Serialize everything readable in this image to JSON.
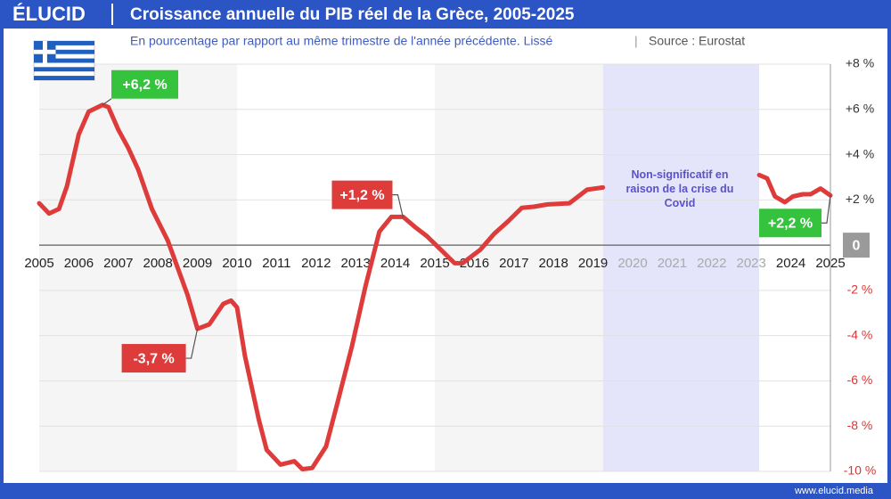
{
  "logo": "ÉLUCID",
  "footer": "www.elucid.media",
  "chart_data": {
    "type": "line",
    "title": "Croissance annuelle du PIB réel de la Grèce, 2005-2025",
    "subtitle": "En pourcentage par rapport au même trimestre de l'année précédente. Lissé",
    "source": "Source : Eurostat",
    "xlim": [
      2005,
      2025
    ],
    "xticks": [
      2005,
      2006,
      2007,
      2008,
      2009,
      2010,
      2011,
      2012,
      2013,
      2014,
      2015,
      2016,
      2017,
      2018,
      2019,
      2020,
      2021,
      2022,
      2023,
      2024,
      2025
    ],
    "ylim": [
      -10,
      8
    ],
    "yticks": [
      {
        "value": 8,
        "label": "+8 %"
      },
      {
        "value": 6,
        "label": "+6 %"
      },
      {
        "value": 4,
        "label": "+4 %"
      },
      {
        "value": 2,
        "label": "+2 %"
      },
      0,
      {
        "value": -2,
        "label": "-2 %"
      },
      {
        "value": -4,
        "label": "-4 %"
      },
      {
        "value": -6,
        "label": "-6 %"
      },
      {
        "value": -8,
        "label": "-8 %"
      },
      {
        "value": -10,
        "label": "-10 %"
      }
    ],
    "grid": true,
    "shaded_ranges": [
      {
        "from": 2005,
        "to": 2010,
        "color": "#f5f5f5"
      },
      {
        "from": 2015,
        "to": 2019.25,
        "color": "#f5f5f5"
      }
    ],
    "covid_range": {
      "from": 2019.25,
      "to": 2023.2,
      "color": "#e4e4fb",
      "text": "Non-significatif en raison de la crise du Covid"
    },
    "series": [
      {
        "name": "PIB réel",
        "color": "#de3b3b",
        "x": [
          2005.0,
          2005.25,
          2005.5,
          2005.7,
          2006.0,
          2006.25,
          2006.6,
          2006.75,
          2007.0,
          2007.25,
          2007.5,
          2007.85,
          2008.25,
          2008.5,
          2008.75,
          2009.0,
          2009.3,
          2009.65,
          2009.85,
          2010.0,
          2010.2,
          2010.55,
          2010.75,
          2011.1,
          2011.45,
          2011.65,
          2011.9,
          2012.25,
          2012.55,
          2012.9,
          2013.25,
          2013.6,
          2013.9,
          2014.2,
          2014.5,
          2014.8,
          2015.15,
          2015.5,
          2015.7,
          2016.15,
          2016.5,
          2016.85,
          2017.2,
          2017.5,
          2017.85,
          2018.4,
          2018.85,
          2019.25,
          2021.0,
          2023.2,
          2023.4,
          2023.6,
          2023.85,
          2024.05,
          2024.3,
          2024.5,
          2024.75,
          2025.0
        ],
        "values": [
          1.85,
          1.4,
          1.6,
          2.6,
          4.9,
          5.9,
          6.2,
          6.1,
          5.1,
          4.3,
          3.35,
          1.6,
          0.2,
          -1.0,
          -2.2,
          -3.7,
          -3.5,
          -2.6,
          -2.45,
          -2.75,
          -4.9,
          -7.7,
          -9.05,
          -9.7,
          -9.55,
          -9.9,
          -9.85,
          -8.9,
          -6.9,
          -4.5,
          -1.8,
          0.6,
          1.25,
          1.25,
          0.8,
          0.4,
          -0.2,
          -0.8,
          -0.8,
          -0.2,
          0.5,
          1.05,
          1.65,
          1.7,
          1.8,
          1.85,
          2.45,
          2.55,
          null,
          3.1,
          2.95,
          2.15,
          1.9,
          2.15,
          2.25,
          2.25,
          2.5,
          2.2
        ]
      }
    ],
    "annotations": [
      {
        "text": "+6,2 %",
        "x": 2006.6,
        "y": 6.2,
        "color": "#35c23d"
      },
      {
        "text": "-3,7 %",
        "x": 2009.0,
        "y": -3.7,
        "color": "#de3b3b"
      },
      {
        "text": "+1,2 %",
        "x": 2014.2,
        "y": 1.2,
        "color": "#de3b3b"
      },
      {
        "text": "+2,2 %",
        "x": 2025.0,
        "y": 2.2,
        "color": "#35c23d"
      }
    ]
  }
}
